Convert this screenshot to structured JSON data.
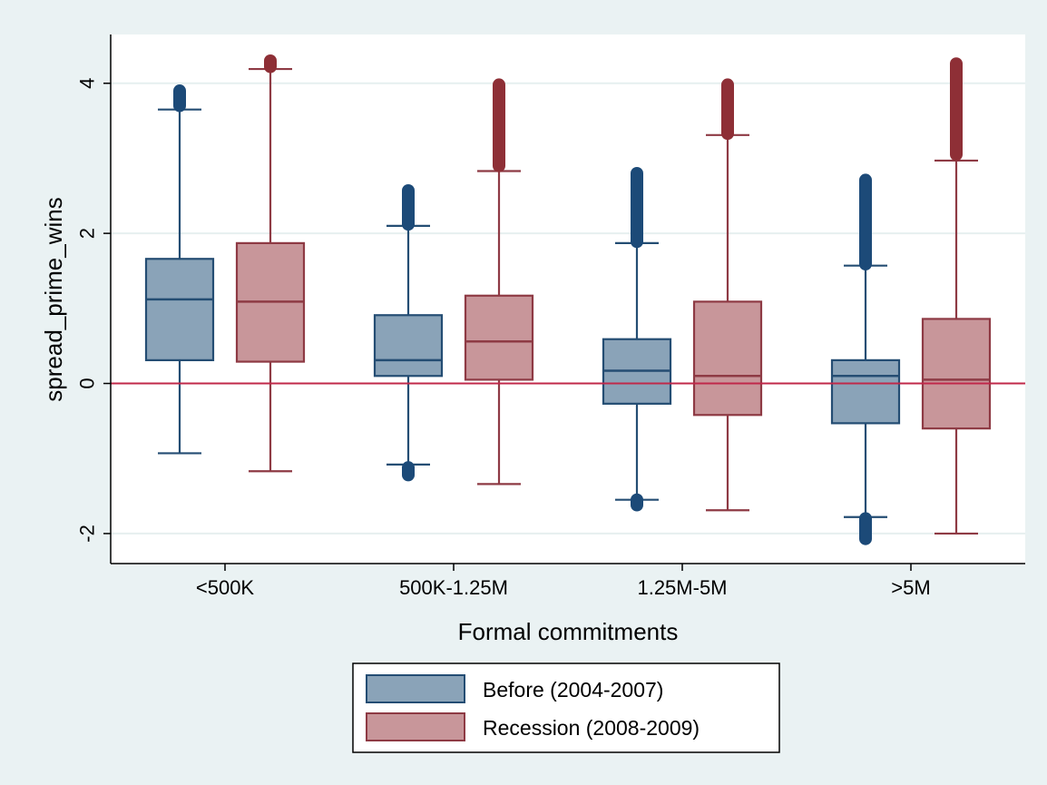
{
  "chart_data": {
    "type": "box",
    "title": "",
    "xlabel": "Formal commitments",
    "ylabel": "spread_prime_wins",
    "ylim": [
      -2.4,
      4.65
    ],
    "yticks": [
      -2,
      0,
      2,
      4
    ],
    "grid": true,
    "reference_line_y": 0,
    "legend_position": "bottom-center",
    "categories": [
      "<500K",
      "500K-1.25M",
      "1.25M-5M",
      ">5M"
    ],
    "series": [
      {
        "name": "Before (2004-2007)",
        "fill": "#8aa3b8",
        "stroke": "#244d73",
        "outlier_color": "#1c4a78",
        "boxes": [
          {
            "whisker_low": -0.93,
            "q1": 0.31,
            "median": 1.12,
            "q3": 1.66,
            "whisker_high": 3.65,
            "outliers_low": [],
            "outliers_high": [
              3.7,
              3.9
            ]
          },
          {
            "whisker_low": -1.08,
            "q1": 0.1,
            "median": 0.31,
            "q3": 0.91,
            "whisker_high": 2.1,
            "outliers_low": [
              -1.12,
              -1.22
            ],
            "outliers_high": [
              2.12,
              2.57
            ]
          },
          {
            "whisker_low": -1.55,
            "q1": -0.27,
            "median": 0.17,
            "q3": 0.59,
            "whisker_high": 1.87,
            "outliers_low": [
              -1.55,
              -1.62
            ],
            "outliers_high": [
              1.89,
              2.8
            ]
          },
          {
            "whisker_low": -1.78,
            "q1": -0.53,
            "median": 0.1,
            "q3": 0.31,
            "whisker_high": 1.57,
            "outliers_low": [
              -1.8,
              -2.07
            ],
            "outliers_high": [
              1.59,
              2.71
            ]
          }
        ]
      },
      {
        "name": "Recession (2008-2009)",
        "fill": "#c8969a",
        "stroke": "#8e3a44",
        "outlier_color": "#8e2f36",
        "boxes": [
          {
            "whisker_low": -1.17,
            "q1": 0.29,
            "median": 1.09,
            "q3": 1.87,
            "whisker_high": 4.19,
            "outliers_low": [],
            "outliers_high": [
              4.22,
              4.3
            ]
          },
          {
            "whisker_low": -1.34,
            "q1": 0.05,
            "median": 0.56,
            "q3": 1.17,
            "whisker_high": 2.83,
            "outliers_low": [],
            "outliers_high": [
              2.9,
              3.98
            ]
          },
          {
            "whisker_low": -1.69,
            "q1": -0.42,
            "median": 0.1,
            "q3": 1.09,
            "whisker_high": 3.31,
            "outliers_low": [],
            "outliers_high": [
              3.33,
              3.98
            ]
          },
          {
            "whisker_low": -2.0,
            "q1": -0.6,
            "median": 0.05,
            "q3": 0.86,
            "whisker_high": 2.97,
            "outliers_low": [],
            "outliers_high": [
              3.05,
              4.26
            ]
          }
        ]
      }
    ]
  },
  "colors": {
    "background": "#eaf2f3",
    "plot_background": "#ffffff",
    "reference_line": "#c0284a",
    "grid": "#e6efef"
  }
}
